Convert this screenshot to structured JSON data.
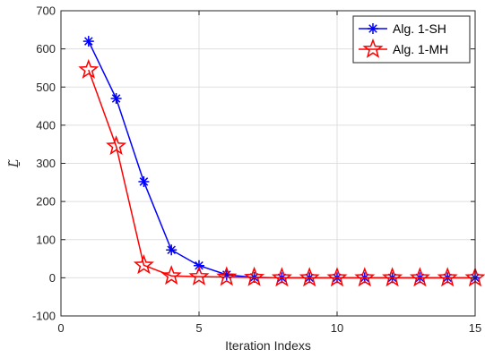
{
  "chart_data": {
    "type": "line",
    "title": "",
    "xlabel": "Iteration Indexs",
    "ylabel": "Ḻ̃",
    "xlim": [
      0,
      15
    ],
    "ylim": [
      -100,
      700
    ],
    "xticks": [
      0,
      5,
      10,
      15
    ],
    "yticks": [
      -100,
      0,
      100,
      200,
      300,
      400,
      500,
      600,
      700
    ],
    "grid": true,
    "legend_position": "top-right",
    "x": [
      1,
      2,
      3,
      4,
      5,
      6,
      7,
      8,
      9,
      10,
      11,
      12,
      13,
      14,
      15
    ],
    "series": [
      {
        "name": "Alg. 1-SH",
        "color": "#0000ff",
        "marker": "asterisk",
        "values": [
          620,
          470,
          252,
          73,
          32,
          8,
          1,
          0,
          0,
          0,
          0,
          0,
          0,
          0,
          0
        ]
      },
      {
        "name": "Alg. 1-MH",
        "color": "#ff0000",
        "marker": "pentagram",
        "values": [
          545,
          345,
          33,
          5,
          3,
          2,
          1,
          0,
          0,
          0,
          0,
          0,
          0,
          0,
          0
        ]
      }
    ]
  }
}
